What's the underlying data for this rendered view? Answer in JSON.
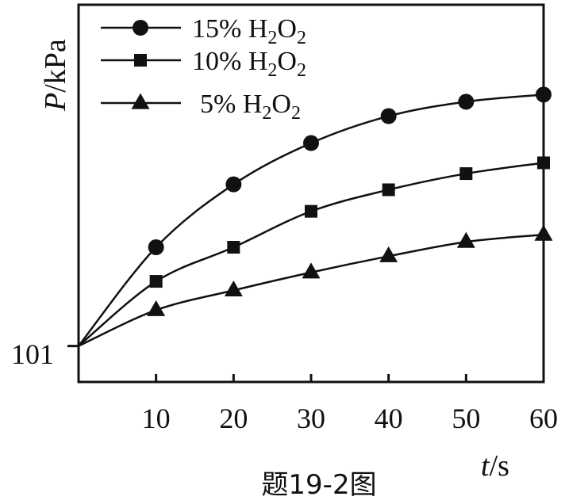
{
  "chart_data": {
    "type": "line",
    "ylabel_var": "P",
    "ylabel_unit": "/kPa",
    "xlabel_var": "t",
    "xlabel_unit": "/s",
    "caption": "题19-2图",
    "y_tick": "101",
    "y_origin_value": 101,
    "x_ticks": [
      "10",
      "20",
      "30",
      "40",
      "50",
      "60"
    ],
    "xlim": [
      0,
      60
    ],
    "ylim": [
      99,
      120
    ],
    "grid": false,
    "legend_position": "top-left",
    "x": [
      0,
      10,
      20,
      30,
      40,
      50,
      60
    ],
    "series": [
      {
        "name_prefix": "15% H",
        "name_sub1": "2",
        "name_mid": "O",
        "name_sub2": "2",
        "marker": "circle",
        "values": [
          101,
          106.5,
          110.0,
          112.3,
          113.8,
          114.6,
          115.0
        ]
      },
      {
        "name_prefix": "10% H",
        "name_sub1": "2",
        "name_mid": "O",
        "name_sub2": "2",
        "marker": "square",
        "values": [
          101,
          104.6,
          106.5,
          108.5,
          109.7,
          110.6,
          111.2
        ]
      },
      {
        "name_prefix": "5% H",
        "name_sub1": "2",
        "name_mid": "O",
        "name_sub2": "2",
        "marker": "triangle",
        "values": [
          101,
          103.0,
          104.1,
          105.1,
          106.0,
          106.8,
          107.2
        ]
      }
    ],
    "line_color": "#111111"
  }
}
